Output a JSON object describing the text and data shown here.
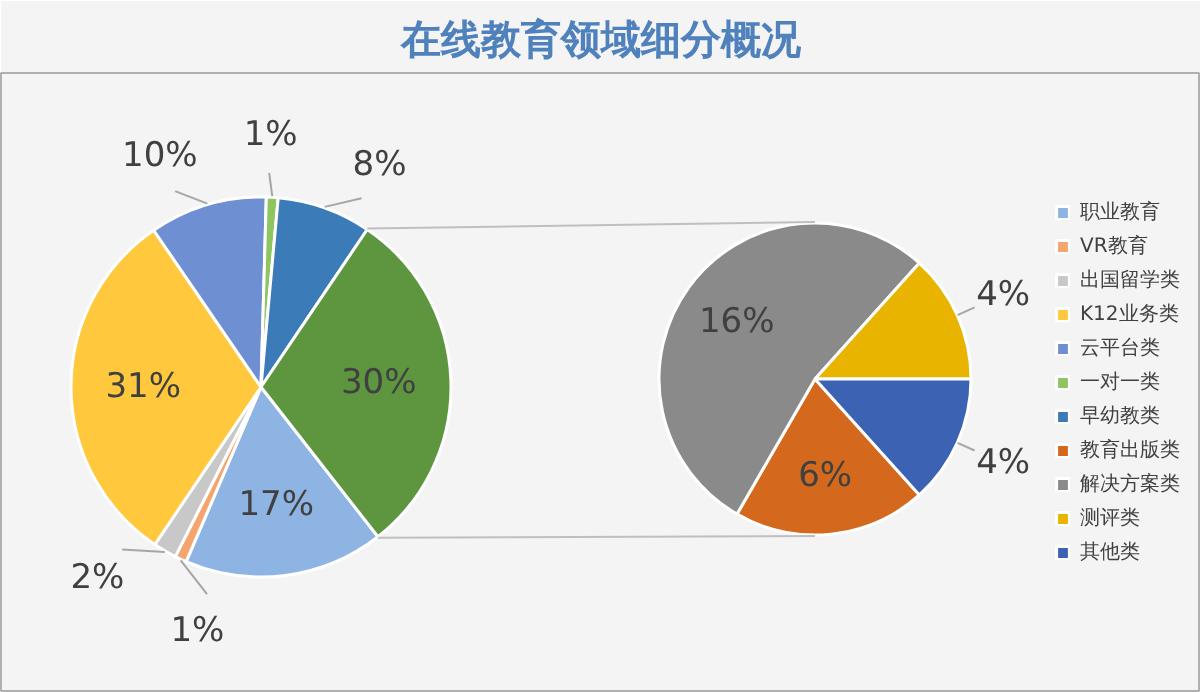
{
  "chart_data": [
    {
      "type": "pie",
      "title": "在线教育领域细分概况",
      "categories": [
        "职业教育",
        "VR教育",
        "出国留学类",
        "K12业务类",
        "云平台类",
        "一对一类",
        "早幼教类",
        null
      ],
      "values": [
        17,
        1,
        2,
        31,
        10,
        1,
        8,
        30
      ],
      "value_labels": [
        "17%",
        "1%",
        "2%",
        "31%",
        "10%",
        "1%",
        "8%",
        "30%"
      ],
      "colors": [
        "#8db4e2",
        "#f4a46c",
        "#c8c8c8",
        "#ffc83d",
        "#6f8fd3",
        "#8fc560",
        "#3a7bb8",
        "#5e9640"
      ],
      "legend": "right"
    },
    {
      "type": "pie",
      "categories": [
        "教育出版类",
        "解决方案类",
        "测评类",
        "其他类"
      ],
      "values": [
        6,
        16,
        4,
        4
      ],
      "value_labels": [
        "6%",
        "16%",
        "4%",
        "4%"
      ],
      "colors": [
        "#d4691e",
        "#8a8a8a",
        "#e8b400",
        "#3c62b3"
      ],
      "legend": "right"
    }
  ]
}
